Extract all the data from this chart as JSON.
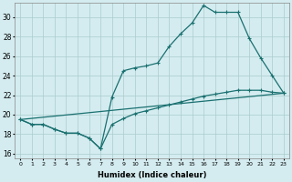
{
  "xlabel": "Humidex (Indice chaleur)",
  "bg_color": "#d4ecf0",
  "grid_color": "#aacccc",
  "line_color": "#1a7070",
  "xlim": [
    -0.5,
    23.5
  ],
  "ylim": [
    15.5,
    31.5
  ],
  "yticks": [
    16,
    18,
    20,
    22,
    24,
    26,
    28,
    30
  ],
  "xticks": [
    0,
    1,
    2,
    3,
    4,
    5,
    6,
    7,
    8,
    9,
    10,
    11,
    12,
    13,
    14,
    15,
    16,
    17,
    18,
    19,
    20,
    21,
    22,
    23
  ],
  "line1_x": [
    0,
    1,
    2,
    3,
    4,
    5,
    6,
    7,
    8,
    9,
    10,
    11,
    12,
    13,
    14,
    15,
    16,
    17,
    18,
    19,
    20,
    21,
    22,
    23
  ],
  "line1_y": [
    19.5,
    19.0,
    19.0,
    18.5,
    18.1,
    18.1,
    17.6,
    16.5,
    19.0,
    19.6,
    20.1,
    20.4,
    20.7,
    21.0,
    21.3,
    21.6,
    21.9,
    22.1,
    22.3,
    22.5,
    22.5,
    22.5,
    22.3,
    22.2
  ],
  "line2_x": [
    0,
    1,
    2,
    3,
    4,
    5,
    6,
    7,
    8,
    9,
    10,
    11,
    12,
    13,
    14,
    15,
    16,
    17,
    18,
    19,
    20,
    21,
    22,
    23
  ],
  "line2_y": [
    19.5,
    19.0,
    19.0,
    18.5,
    18.1,
    18.1,
    17.6,
    16.5,
    21.8,
    24.5,
    24.8,
    25.0,
    25.3,
    27.0,
    28.3,
    29.4,
    31.2,
    30.5,
    30.5,
    30.5,
    27.8,
    25.8,
    24.0,
    22.2
  ],
  "line3_x": [
    0,
    23
  ],
  "line3_y": [
    19.5,
    22.2
  ]
}
